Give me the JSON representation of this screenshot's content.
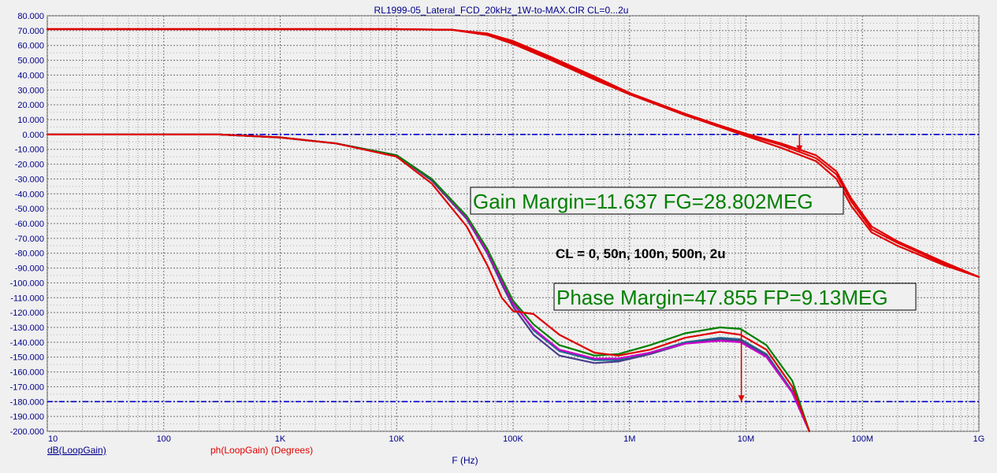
{
  "window_title": "RL1999-05_Lateral_FCD_20kHz_1W-to-MAX.CIR CL=0...2u",
  "chart_data": {
    "type": "line",
    "title": "RL1999-05_Lateral_FCD_20kHz_1W-to-MAX.CIR CL=0...2u",
    "xlabel": "F (Hz)",
    "x_scale": "log",
    "xlim": [
      10,
      1000000000
    ],
    "ylim": [
      -200,
      80
    ],
    "grid": true,
    "x_ticks": [
      {
        "value": 10,
        "label": "10"
      },
      {
        "value": 100,
        "label": "100"
      },
      {
        "value": 1000,
        "label": "1K"
      },
      {
        "value": 10000,
        "label": "10K"
      },
      {
        "value": 100000,
        "label": "100K"
      },
      {
        "value": 1000000,
        "label": "1M"
      },
      {
        "value": 10000000,
        "label": "10M"
      },
      {
        "value": 100000000,
        "label": "100M"
      },
      {
        "value": 1000000000,
        "label": "1G"
      }
    ],
    "y_ticks": [
      {
        "value": 80,
        "label": "80.000"
      },
      {
        "value": 70,
        "label": "70.000"
      },
      {
        "value": 60,
        "label": "60.000"
      },
      {
        "value": 50,
        "label": "50.000"
      },
      {
        "value": 40,
        "label": "40.000"
      },
      {
        "value": 30,
        "label": "30.000"
      },
      {
        "value": 20,
        "label": "20.000"
      },
      {
        "value": 10,
        "label": "10.000"
      },
      {
        "value": 0,
        "label": "0.000"
      },
      {
        "value": -10,
        "label": "-10.000"
      },
      {
        "value": -20,
        "label": "-20.000"
      },
      {
        "value": -30,
        "label": "-30.000"
      },
      {
        "value": -40,
        "label": "-40.000"
      },
      {
        "value": -50,
        "label": "-50.000"
      },
      {
        "value": -60,
        "label": "-60.000"
      },
      {
        "value": -70,
        "label": "-70.000"
      },
      {
        "value": -80,
        "label": "-80.000"
      },
      {
        "value": -90,
        "label": "-90.000"
      },
      {
        "value": -100,
        "label": "-100.000"
      },
      {
        "value": -110,
        "label": "-110.000"
      },
      {
        "value": -120,
        "label": "-120.000"
      },
      {
        "value": -130,
        "label": "-130.000"
      },
      {
        "value": -140,
        "label": "-140.000"
      },
      {
        "value": -150,
        "label": "-150.000"
      },
      {
        "value": -160,
        "label": "-160.000"
      },
      {
        "value": -170,
        "label": "-170.000"
      },
      {
        "value": -180,
        "label": "-180.000"
      },
      {
        "value": -190,
        "label": "-190.000"
      },
      {
        "value": -200,
        "label": "-200.000"
      }
    ],
    "reference_lines": [
      {
        "y": 0,
        "color": "#0000cd",
        "style": "dashdot"
      },
      {
        "y": -180,
        "color": "#0000cd",
        "style": "dashdot"
      }
    ],
    "series": [
      {
        "name": "dB(LoopGain)",
        "color": "#e00000",
        "x": [
          10,
          1000,
          10000,
          30000,
          60000,
          100000,
          200000,
          500000,
          1000000,
          3000000,
          6000000,
          10000000,
          20000000,
          40000000,
          60000000,
          80000000,
          120000000,
          200000000,
          500000000,
          1000000000
        ],
        "y": [
          71,
          71,
          71,
          70.5,
          68,
          63,
          53,
          39,
          28,
          14,
          6,
          0.5,
          -6,
          -14,
          -25,
          -43,
          -62,
          -72,
          -86,
          -96
        ]
      },
      {
        "color": "#e00000",
        "x": [
          10,
          1000,
          10000,
          30000,
          60000,
          100000,
          200000,
          500000,
          1000000,
          3000000,
          6000000,
          10000000,
          20000000,
          40000000,
          60000000,
          80000000,
          120000000,
          200000000,
          500000000,
          1000000000
        ],
        "y": [
          71,
          71,
          71,
          70.5,
          67,
          61,
          51,
          37,
          27,
          13,
          5,
          -1,
          -9,
          -18,
          -30,
          -48,
          -66,
          -75,
          -88,
          -96
        ]
      },
      {
        "color": "#e00000",
        "x": [
          10,
          1000,
          10000,
          30000,
          60000,
          100000,
          200000,
          500000,
          1000000,
          3000000,
          6000000,
          10000000,
          20000000,
          40000000,
          60000000,
          80000000,
          120000000,
          200000000,
          500000000,
          1000000000
        ],
        "y": [
          71,
          71,
          71,
          70.5,
          67.5,
          62,
          52,
          38,
          27.5,
          13.5,
          5.5,
          0,
          -7,
          -16,
          -27,
          -45,
          -64,
          -73,
          -87,
          -96
        ]
      },
      {
        "name": "ph(LoopGain) (Degrees)",
        "color": "#e00000",
        "x": [
          10,
          300,
          1000,
          3000,
          10000,
          20000,
          40000,
          60000,
          80000,
          100000,
          150000,
          250000,
          500000,
          800000,
          1500000,
          3000000,
          6000000,
          9000000,
          15000000,
          25000000,
          35000000
        ],
        "y": [
          0,
          0,
          -2,
          -6,
          -15,
          -33,
          -62,
          -88,
          -110,
          -119,
          -121,
          -135,
          -147,
          -149,
          -145,
          -137,
          -133,
          -135,
          -145,
          -170,
          -200
        ]
      },
      {
        "color": "#1a6b8c",
        "x": [
          10,
          300,
          1000,
          3000,
          10000,
          20000,
          40000,
          60000,
          80000,
          100000,
          150000,
          250000,
          500000,
          800000,
          1500000,
          3000000,
          6000000,
          9000000,
          15000000,
          25000000,
          35000000
        ],
        "y": [
          0,
          0,
          -2,
          -6,
          -14,
          -30,
          -55,
          -78,
          -98,
          -113,
          -132,
          -146,
          -152,
          -152,
          -147,
          -140,
          -137,
          -138,
          -148,
          -173,
          -200
        ]
      },
      {
        "color": "#483d8b",
        "x": [
          10,
          300,
          1000,
          3000,
          10000,
          20000,
          40000,
          60000,
          80000,
          100000,
          150000,
          250000,
          500000,
          800000,
          1500000,
          3000000,
          6000000,
          9000000,
          15000000,
          25000000,
          35000000
        ],
        "y": [
          0,
          0,
          -2,
          -6,
          -14,
          -31,
          -57,
          -80,
          -101,
          -116,
          -135,
          -149,
          -154,
          -153,
          -148,
          -141,
          -138,
          -139,
          -149,
          -174,
          -200
        ]
      },
      {
        "color": "#cc00cc",
        "x": [
          10,
          300,
          1000,
          3000,
          10000,
          20000,
          40000,
          60000,
          80000,
          100000,
          150000,
          250000,
          500000,
          800000,
          1500000,
          3000000,
          6000000,
          9000000,
          15000000,
          25000000,
          35000000
        ],
        "y": [
          0,
          0,
          -2,
          -6,
          -14,
          -30,
          -56,
          -79,
          -99,
          -114,
          -131,
          -145,
          -151,
          -151,
          -147,
          -141,
          -139,
          -140,
          -150,
          -174,
          -200
        ]
      },
      {
        "color": "#008000",
        "x": [
          10,
          300,
          1000,
          3000,
          10000,
          20000,
          40000,
          60000,
          80000,
          100000,
          150000,
          250000,
          500000,
          800000,
          1500000,
          3000000,
          6000000,
          9000000,
          15000000,
          25000000,
          35000000
        ],
        "y": [
          0,
          0,
          -2,
          -6,
          -14,
          -30,
          -55,
          -77,
          -97,
          -112,
          -128,
          -142,
          -149,
          -148,
          -142,
          -134,
          -130,
          -131,
          -142,
          -166,
          -200
        ]
      }
    ],
    "markers": [
      {
        "x": 28802000,
        "y_from": 0,
        "y_to": -11.637,
        "color": "#e00000"
      },
      {
        "x": 9130000,
        "y_from": -132.145,
        "y_to": -180,
        "color": "#e00000"
      }
    ],
    "annotations": {
      "gain_margin": "Gain Margin=11.637 FG=28.802MEG",
      "phase_margin": "Phase Margin=47.855 FP=9.13MEG",
      "cl_values": "CL = 0, 50n, 100n, 500n, 2u"
    },
    "legend": [
      {
        "label": "dB(LoopGain)",
        "color": "#00008b"
      },
      {
        "label": "ph(LoopGain) (Degrees)",
        "color": "#e00000"
      }
    ]
  }
}
